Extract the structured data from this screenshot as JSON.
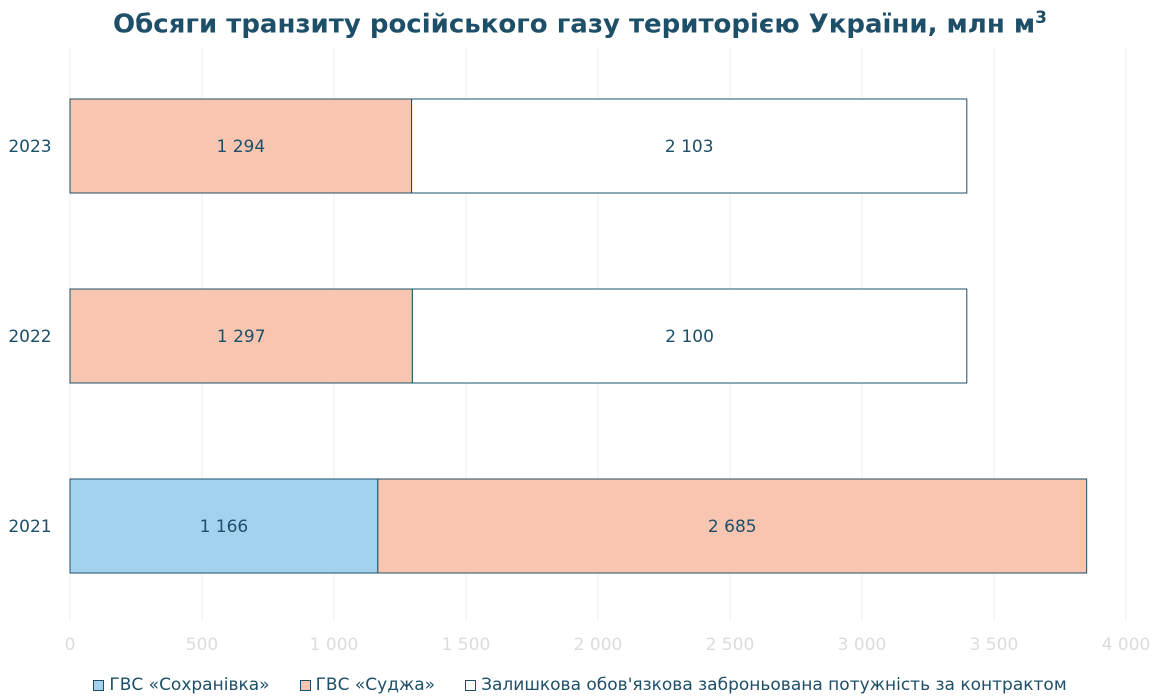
{
  "chart_data": {
    "type": "bar",
    "orientation": "horizontal",
    "stacked": true,
    "title": "Обсяги транзиту російського газу територією України, млн м",
    "title_superscript": "3",
    "categories": [
      "2023",
      "2022",
      "2021"
    ],
    "series": [
      {
        "name": "ГВС «Сохранівка»",
        "color": "#a3d2ef",
        "values": [
          0,
          0,
          1166
        ],
        "labels": [
          "",
          "",
          "1 166"
        ]
      },
      {
        "name": "ГВС «Суджа»",
        "color": "#f7c5b0",
        "values": [
          1294,
          1297,
          2685
        ],
        "labels": [
          "1 294",
          "1 297",
          "2 685"
        ]
      },
      {
        "name": "Залишкова обов'язкова заброньована потужність за контрактом",
        "color": "#ffffff",
        "values": [
          2103,
          2100,
          0
        ],
        "labels": [
          "2 103",
          "2 100",
          ""
        ]
      }
    ],
    "xlim": [
      0,
      4000
    ],
    "xticks": [
      0,
      500,
      1000,
      1500,
      2000,
      2500,
      3000,
      3500,
      4000
    ],
    "xtick_labels": [
      "0",
      "500",
      "1 000",
      "1 500",
      "2 000",
      "2 500",
      "3 000",
      "3 500",
      "4 000"
    ],
    "grid": "vertical",
    "legend": "bottom"
  },
  "colors": {
    "title": "#1d4f68",
    "text": "#1d4f68",
    "tick": "#dcdcdc",
    "grid": "#eeeeee",
    "border": "#1d4f68"
  }
}
